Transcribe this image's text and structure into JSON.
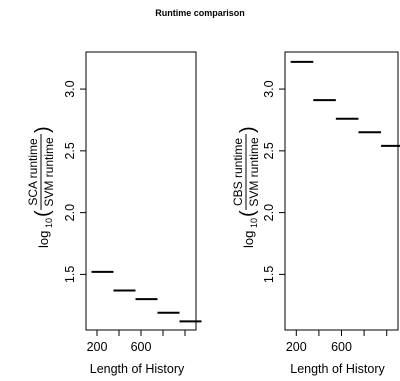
{
  "title": "Runtime comparison",
  "chart_data": [
    {
      "type": "line",
      "title": "",
      "xlabel": "Length of History",
      "ylabel": {
        "prefix": "log",
        "subscript": "10",
        "numerator": "SCA runtime",
        "denominator": "SVM runtime"
      },
      "x_ticks": [
        "200",
        "600"
      ],
      "y_ticks": [
        "1.5",
        "2.0",
        "2.5",
        "3.0"
      ],
      "xlim": [
        100,
        1100
      ],
      "ylim": [
        1.05,
        3.3
      ],
      "segments": [
        {
          "x_start": 150,
          "x_end": 350,
          "y": 1.52
        },
        {
          "x_start": 350,
          "x_end": 550,
          "y": 1.37
        },
        {
          "x_start": 550,
          "x_end": 750,
          "y": 1.3
        },
        {
          "x_start": 750,
          "x_end": 950,
          "y": 1.19
        },
        {
          "x_start": 950,
          "x_end": 1150,
          "y": 1.12
        }
      ]
    },
    {
      "type": "line",
      "title": "",
      "xlabel": "Length of History",
      "ylabel": {
        "prefix": "log",
        "subscript": "10",
        "numerator": "CBS runtime",
        "denominator": "SVM runtime"
      },
      "x_ticks": [
        "200",
        "600"
      ],
      "y_ticks": [
        "1.5",
        "2.0",
        "2.5",
        "3.0"
      ],
      "xlim": [
        100,
        1100
      ],
      "ylim": [
        1.05,
        3.3
      ],
      "segments": [
        {
          "x_start": 150,
          "x_end": 350,
          "y": 3.22
        },
        {
          "x_start": 350,
          "x_end": 550,
          "y": 2.91
        },
        {
          "x_start": 550,
          "x_end": 750,
          "y": 2.76
        },
        {
          "x_start": 750,
          "x_end": 950,
          "y": 2.65
        },
        {
          "x_start": 950,
          "x_end": 1150,
          "y": 2.54
        }
      ]
    }
  ]
}
